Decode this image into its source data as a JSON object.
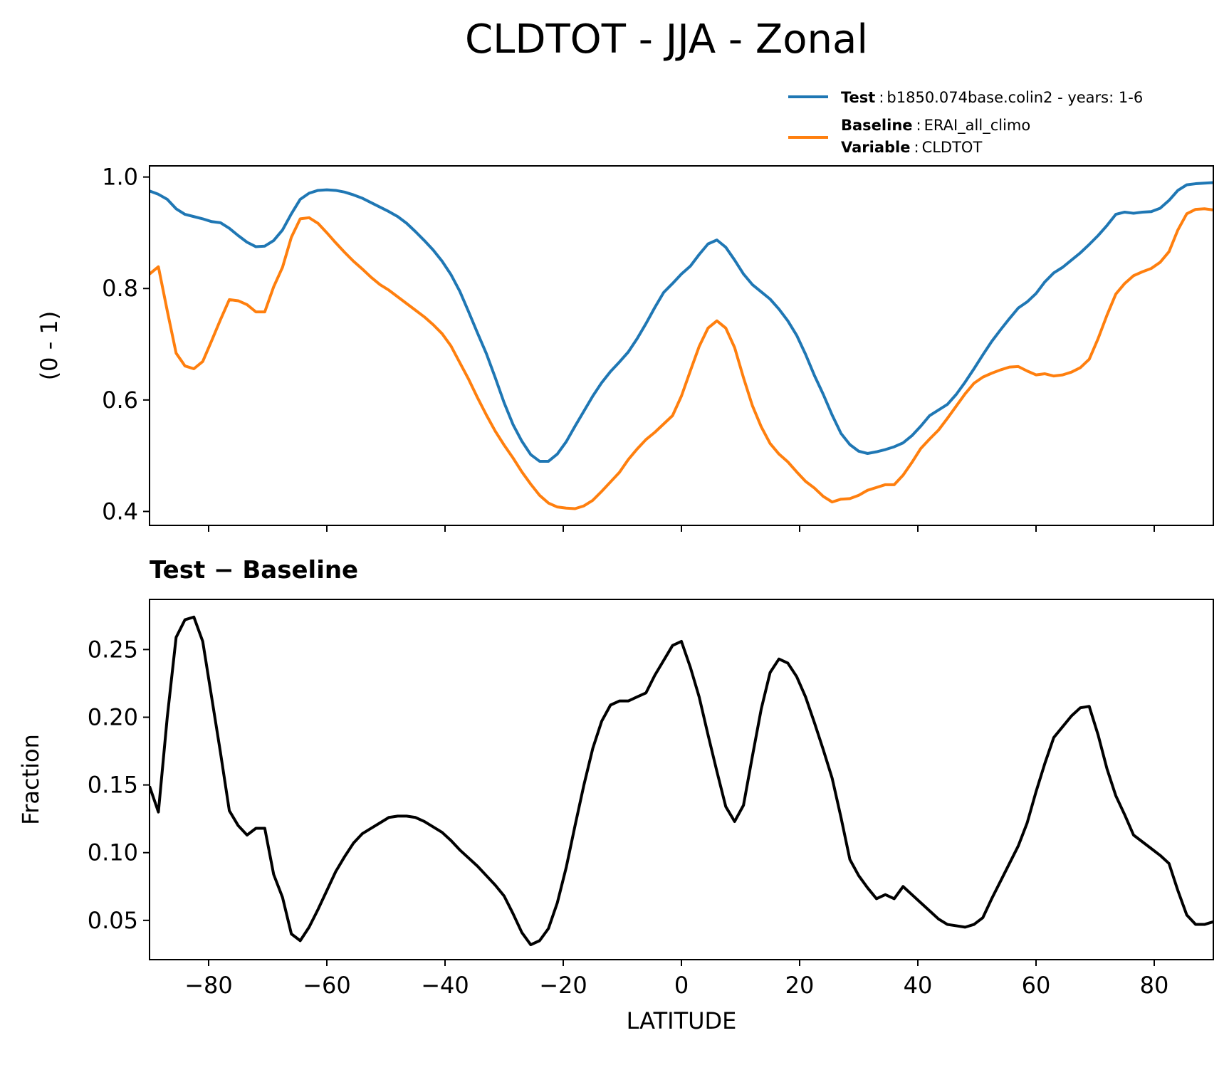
{
  "title": "CLDTOT - JJA - Zonal",
  "legend": {
    "test_label": "Test",
    "test_value": "b1850.074base.colin2 - years: 1-6",
    "baseline_label": "Baseline",
    "baseline_value": "ERAI_all_climo",
    "variable_label": "Variable",
    "variable_value": "CLDTOT",
    "sep": ":"
  },
  "colors": {
    "test": "#1f77b4",
    "baseline": "#ff7f0e",
    "diff": "#000000"
  },
  "chart_data": [
    {
      "type": "line",
      "xlim": [
        -90,
        90
      ],
      "ylim": [
        0.375,
        1.02
      ],
      "ylabel": "(0 - 1)",
      "xlabel": "",
      "yticks": [
        0.4,
        0.6,
        0.8,
        1.0
      ],
      "ytick_labels": [
        "0.4",
        "0.6",
        "0.8",
        "1.0"
      ],
      "xticks": [
        -80,
        -60,
        -40,
        -20,
        0,
        20,
        40,
        60,
        80
      ],
      "legend_position": "upper-right (above axes)",
      "grid": false,
      "series": [
        {
          "name": "Test",
          "x": [
            -90,
            -88.5,
            -87,
            -85.5,
            -84,
            -82.5,
            -81,
            -79.5,
            -78,
            -76.5,
            -75,
            -73.5,
            -72,
            -70.5,
            -69,
            -67.5,
            -66,
            -64.5,
            -63,
            -61.5,
            -60,
            -58.5,
            -57,
            -55.5,
            -54,
            -52.5,
            -51,
            -49.5,
            -48,
            -46.5,
            -45,
            -43.5,
            -42,
            -40.5,
            -39,
            -37.5,
            -36,
            -34.5,
            -33,
            -31.5,
            -30,
            -28.5,
            -27,
            -25.5,
            -24,
            -22.5,
            -21,
            -19.5,
            -18,
            -16.5,
            -15,
            -13.5,
            -12,
            -10.5,
            -9,
            -7.5,
            -6,
            -4.5,
            -3,
            -1.5,
            0,
            1.5,
            3,
            4.5,
            6,
            7.5,
            9,
            10.5,
            12,
            13.5,
            15,
            16.5,
            18,
            19.5,
            21,
            22.5,
            24,
            25.5,
            27,
            28.5,
            30,
            31.5,
            33,
            34.5,
            36,
            37.5,
            39,
            40.5,
            42,
            43.5,
            45,
            46.5,
            48,
            49.5,
            51,
            52.5,
            54,
            55.5,
            57,
            58.5,
            60,
            61.5,
            63,
            64.5,
            66,
            67.5,
            69,
            70.5,
            72,
            73.5,
            75,
            76.5,
            78,
            79.5,
            81,
            82.5,
            84,
            85.5,
            87,
            88.5,
            90
          ],
          "values": [
            0.975,
            0.969,
            0.96,
            0.943,
            0.933,
            0.929,
            0.925,
            0.92,
            0.918,
            0.908,
            0.895,
            0.883,
            0.875,
            0.876,
            0.886,
            0.905,
            0.934,
            0.96,
            0.971,
            0.976,
            0.977,
            0.976,
            0.973,
            0.968,
            0.962,
            0.954,
            0.946,
            0.938,
            0.929,
            0.917,
            0.902,
            0.886,
            0.869,
            0.849,
            0.825,
            0.795,
            0.758,
            0.72,
            0.683,
            0.64,
            0.595,
            0.556,
            0.526,
            0.502,
            0.49,
            0.49,
            0.503,
            0.525,
            0.553,
            0.58,
            0.607,
            0.631,
            0.651,
            0.668,
            0.686,
            0.71,
            0.737,
            0.766,
            0.793,
            0.809,
            0.826,
            0.84,
            0.861,
            0.88,
            0.887,
            0.874,
            0.851,
            0.826,
            0.807,
            0.794,
            0.781,
            0.763,
            0.742,
            0.716,
            0.682,
            0.644,
            0.61,
            0.573,
            0.54,
            0.52,
            0.508,
            0.504,
            0.507,
            0.511,
            0.516,
            0.523,
            0.536,
            0.553,
            0.572,
            0.582,
            0.592,
            0.61,
            0.632,
            0.656,
            0.681,
            0.705,
            0.726,
            0.746,
            0.765,
            0.776,
            0.791,
            0.812,
            0.828,
            0.838,
            0.851,
            0.864,
            0.879,
            0.895,
            0.913,
            0.933,
            0.937,
            0.935,
            0.937,
            0.938,
            0.944,
            0.958,
            0.976,
            0.986,
            0.988,
            0.989,
            0.99
          ]
        },
        {
          "name": "Baseline",
          "x": [
            -90,
            -88.5,
            -87,
            -85.5,
            -84,
            -82.5,
            -81,
            -79.5,
            -78,
            -76.5,
            -75,
            -73.5,
            -72,
            -70.5,
            -69,
            -67.5,
            -66,
            -64.5,
            -63,
            -61.5,
            -60,
            -58.5,
            -57,
            -55.5,
            -54,
            -52.5,
            -51,
            -49.5,
            -48,
            -46.5,
            -45,
            -43.5,
            -42,
            -40.5,
            -39,
            -37.5,
            -36,
            -34.5,
            -33,
            -31.5,
            -30,
            -28.5,
            -27,
            -25.5,
            -24,
            -22.5,
            -21,
            -19.5,
            -18,
            -16.5,
            -15,
            -13.5,
            -12,
            -10.5,
            -9,
            -7.5,
            -6,
            -4.5,
            -3,
            -1.5,
            0,
            1.5,
            3,
            4.5,
            6,
            7.5,
            9,
            10.5,
            12,
            13.5,
            15,
            16.5,
            18,
            19.5,
            21,
            22.5,
            24,
            25.5,
            27,
            28.5,
            30,
            31.5,
            33,
            34.5,
            36,
            37.5,
            39,
            40.5,
            42,
            43.5,
            45,
            46.5,
            48,
            49.5,
            51,
            52.5,
            54,
            55.5,
            57,
            58.5,
            60,
            61.5,
            63,
            64.5,
            66,
            67.5,
            69,
            70.5,
            72,
            73.5,
            75,
            76.5,
            78,
            79.5,
            81,
            82.5,
            84,
            85.5,
            87,
            88.5,
            90
          ],
          "values": [
            0.826,
            0.839,
            0.76,
            0.684,
            0.661,
            0.656,
            0.669,
            0.706,
            0.744,
            0.78,
            0.778,
            0.771,
            0.758,
            0.758,
            0.803,
            0.838,
            0.892,
            0.925,
            0.927,
            0.917,
            0.9,
            0.882,
            0.865,
            0.849,
            0.835,
            0.82,
            0.807,
            0.797,
            0.785,
            0.773,
            0.761,
            0.749,
            0.735,
            0.719,
            0.697,
            0.667,
            0.637,
            0.604,
            0.573,
            0.544,
            0.519,
            0.496,
            0.471,
            0.449,
            0.429,
            0.415,
            0.408,
            0.406,
            0.405,
            0.41,
            0.42,
            0.436,
            0.453,
            0.47,
            0.493,
            0.512,
            0.529,
            0.542,
            0.557,
            0.572,
            0.607,
            0.652,
            0.696,
            0.729,
            0.742,
            0.729,
            0.694,
            0.64,
            0.59,
            0.552,
            0.522,
            0.503,
            0.489,
            0.471,
            0.454,
            0.442,
            0.427,
            0.417,
            0.422,
            0.423,
            0.429,
            0.438,
            0.443,
            0.448,
            0.448,
            0.465,
            0.488,
            0.513,
            0.53,
            0.546,
            0.567,
            0.589,
            0.611,
            0.63,
            0.641,
            0.648,
            0.654,
            0.659,
            0.66,
            0.652,
            0.645,
            0.647,
            0.643,
            0.645,
            0.65,
            0.658,
            0.673,
            0.71,
            0.752,
            0.79,
            0.809,
            0.823,
            0.83,
            0.836,
            0.847,
            0.866,
            0.905,
            0.934,
            0.942,
            0.943,
            0.941
          ]
        }
      ]
    },
    {
      "type": "line",
      "title": "Test − Baseline",
      "xlim": [
        -90,
        90
      ],
      "ylim": [
        0.021,
        0.287
      ],
      "ylabel": "Fraction",
      "xlabel": "LATITUDE",
      "yticks": [
        0.05,
        0.1,
        0.15,
        0.2,
        0.25
      ],
      "ytick_labels": [
        "0.05",
        "0.10",
        "0.15",
        "0.20",
        "0.25"
      ],
      "xticks": [
        -80,
        -60,
        -40,
        -20,
        0,
        20,
        40,
        60,
        80
      ],
      "xtick_labels": [
        "−80",
        "−60",
        "−40",
        "−20",
        "0",
        "20",
        "40",
        "60",
        "80"
      ],
      "grid": false,
      "series": [
        {
          "x": [
            -90,
            -88.5,
            -87,
            -85.5,
            -84,
            -82.5,
            -81,
            -79.5,
            -78,
            -76.5,
            -75,
            -73.5,
            -72,
            -70.5,
            -69,
            -67.5,
            -66,
            -64.5,
            -63,
            -61.5,
            -60,
            -58.5,
            -57,
            -55.5,
            -54,
            -52.5,
            -51,
            -49.5,
            -48,
            -46.5,
            -45,
            -43.5,
            -42,
            -40.5,
            -39,
            -37.5,
            -36,
            -34.5,
            -33,
            -31.5,
            -30,
            -28.5,
            -27,
            -25.5,
            -24,
            -22.5,
            -21,
            -19.5,
            -18,
            -16.5,
            -15,
            -13.5,
            -12,
            -10.5,
            -9,
            -7.5,
            -6,
            -4.5,
            -3,
            -1.5,
            0,
            1.5,
            3,
            4.5,
            6,
            7.5,
            9,
            10.5,
            12,
            13.5,
            15,
            16.5,
            18,
            19.5,
            21,
            22.5,
            24,
            25.5,
            27,
            28.5,
            30,
            31.5,
            33,
            34.5,
            36,
            37.5,
            39,
            40.5,
            42,
            43.5,
            45,
            46.5,
            48,
            49.5,
            51,
            52.5,
            54,
            55.5,
            57,
            58.5,
            60,
            61.5,
            63,
            64.5,
            66,
            67.5,
            69,
            70.5,
            72,
            73.5,
            75,
            76.5,
            78,
            79.5,
            81,
            82.5,
            84,
            85.5,
            87,
            88.5,
            90
          ],
          "values": [
            0.149,
            0.13,
            0.2,
            0.259,
            0.272,
            0.274,
            0.256,
            0.215,
            0.174,
            0.131,
            0.12,
            0.113,
            0.118,
            0.118,
            0.084,
            0.067,
            0.04,
            0.035,
            0.045,
            0.058,
            0.072,
            0.086,
            0.097,
            0.107,
            0.114,
            0.118,
            0.122,
            0.126,
            0.127,
            0.127,
            0.126,
            0.123,
            0.119,
            0.115,
            0.109,
            0.102,
            0.096,
            0.09,
            0.083,
            0.076,
            0.068,
            0.055,
            0.041,
            0.032,
            0.035,
            0.044,
            0.063,
            0.089,
            0.12,
            0.15,
            0.177,
            0.197,
            0.209,
            0.212,
            0.212,
            0.215,
            0.218,
            0.231,
            0.242,
            0.253,
            0.256,
            0.237,
            0.215,
            0.187,
            0.16,
            0.134,
            0.123,
            0.135,
            0.171,
            0.206,
            0.233,
            0.243,
            0.24,
            0.23,
            0.215,
            0.196,
            0.176,
            0.155,
            0.126,
            0.095,
            0.083,
            0.074,
            0.066,
            0.069,
            0.066,
            0.075,
            0.069,
            0.063,
            0.057,
            0.051,
            0.047,
            0.046,
            0.045,
            0.047,
            0.052,
            0.066,
            0.079,
            0.092,
            0.105,
            0.122,
            0.145,
            0.166,
            0.185,
            0.193,
            0.201,
            0.207,
            0.208,
            0.187,
            0.162,
            0.142,
            0.128,
            0.113,
            0.108,
            0.103,
            0.098,
            0.092,
            0.072,
            0.054,
            0.047,
            0.047,
            0.049
          ]
        }
      ]
    }
  ]
}
